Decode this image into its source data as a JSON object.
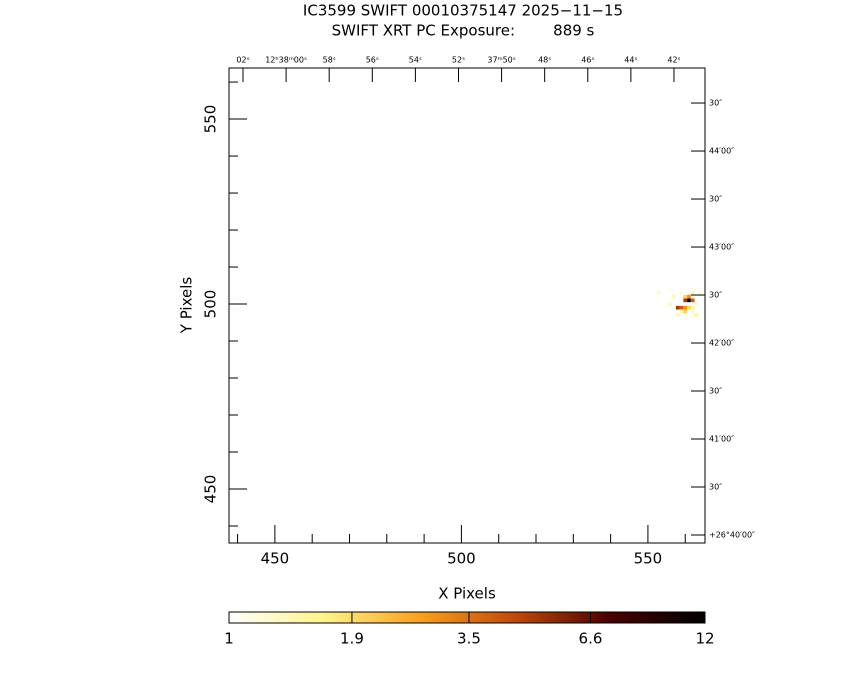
{
  "chart_data": {
    "type": "image",
    "title": "IC3599 SWIFT 00010375147 2025−11−15",
    "subtitle": "SWIFT XRT PC Exposure:        889 s",
    "xlabel": "X Pixels",
    "ylabel": "Y Pixels",
    "xlim": [
      437.7,
      565.3
    ],
    "ylim": [
      435.4,
      563.8
    ],
    "xticks": [
      450,
      500,
      550
    ],
    "yticks": [
      450,
      500,
      550
    ],
    "xminorticks": [
      440,
      460,
      470,
      480,
      490,
      510,
      520,
      530,
      540,
      560
    ],
    "yminorticks": [
      440,
      460,
      470,
      480,
      490,
      510,
      520,
      530,
      540,
      560
    ],
    "x2lim": [
      62.65,
      40.56
    ],
    "x2ticks": [
      {
        "value": 62,
        "label": "02ˢ"
      },
      {
        "value": 60,
        "label": "12ʰ38ᵐ00ˢ"
      },
      {
        "value": 58,
        "label": "58ˢ"
      },
      {
        "value": 56,
        "label": "56ˢ"
      },
      {
        "value": 54,
        "label": "54ˢ"
      },
      {
        "value": 52,
        "label": "52ˢ"
      },
      {
        "value": 50,
        "label": "37ᵐ50ˢ"
      },
      {
        "value": 48,
        "label": "48ˢ"
      },
      {
        "value": 46,
        "label": "46ˢ"
      },
      {
        "value": 44,
        "label": "44ˢ"
      },
      {
        "value": 42,
        "label": "42ˢ"
      }
    ],
    "y2lim": [
      -5,
      291.9
    ],
    "y2ticks": [
      {
        "value": 0,
        "label": "+26°40′00″"
      },
      {
        "value": 30,
        "label": "30″"
      },
      {
        "value": 60,
        "label": "41′00″"
      },
      {
        "value": 90,
        "label": "30″"
      },
      {
        "value": 120,
        "label": "42′00″"
      },
      {
        "value": 150,
        "label": "30″"
      },
      {
        "value": 180,
        "label": "43′00″"
      },
      {
        "value": 210,
        "label": "30″"
      },
      {
        "value": 240,
        "label": "44′00″"
      },
      {
        "value": 270,
        "label": "30″"
      }
    ],
    "clim": [
      1,
      12
    ],
    "clog": true,
    "cticks": [
      1,
      1.9,
      3.5,
      6.6,
      12
    ],
    "colormap": [
      "#ffffff",
      "#fff38a",
      "#f9a11e",
      "#c04a0a",
      "#4a0000",
      "#000000"
    ],
    "pixels": [
      [
        561,
        501,
        12
      ],
      [
        560,
        501,
        5
      ],
      [
        562,
        501,
        4
      ],
      [
        561,
        502,
        3
      ],
      [
        560,
        502,
        2
      ],
      [
        559,
        499,
        4
      ],
      [
        558,
        499,
        5
      ],
      [
        560,
        499,
        3
      ],
      [
        561,
        499,
        2
      ],
      [
        559,
        498,
        1.5
      ],
      [
        560,
        498,
        2
      ],
      [
        562,
        499,
        1.5
      ],
      [
        557,
        502,
        1.3
      ],
      [
        563,
        500,
        1.2
      ],
      [
        559,
        503,
        1.2
      ],
      [
        556,
        500,
        1.3
      ],
      [
        553,
        503,
        1.2
      ],
      [
        556,
        504,
        1.1
      ],
      [
        562,
        503,
        1.4
      ],
      [
        563,
        497,
        1.5
      ],
      [
        558,
        497,
        1.3
      ],
      [
        560,
        497,
        1.2
      ],
      [
        562,
        498,
        1.3
      ],
      [
        564,
        503,
        1.2
      ],
      [
        555,
        499,
        1.1
      ]
    ]
  }
}
